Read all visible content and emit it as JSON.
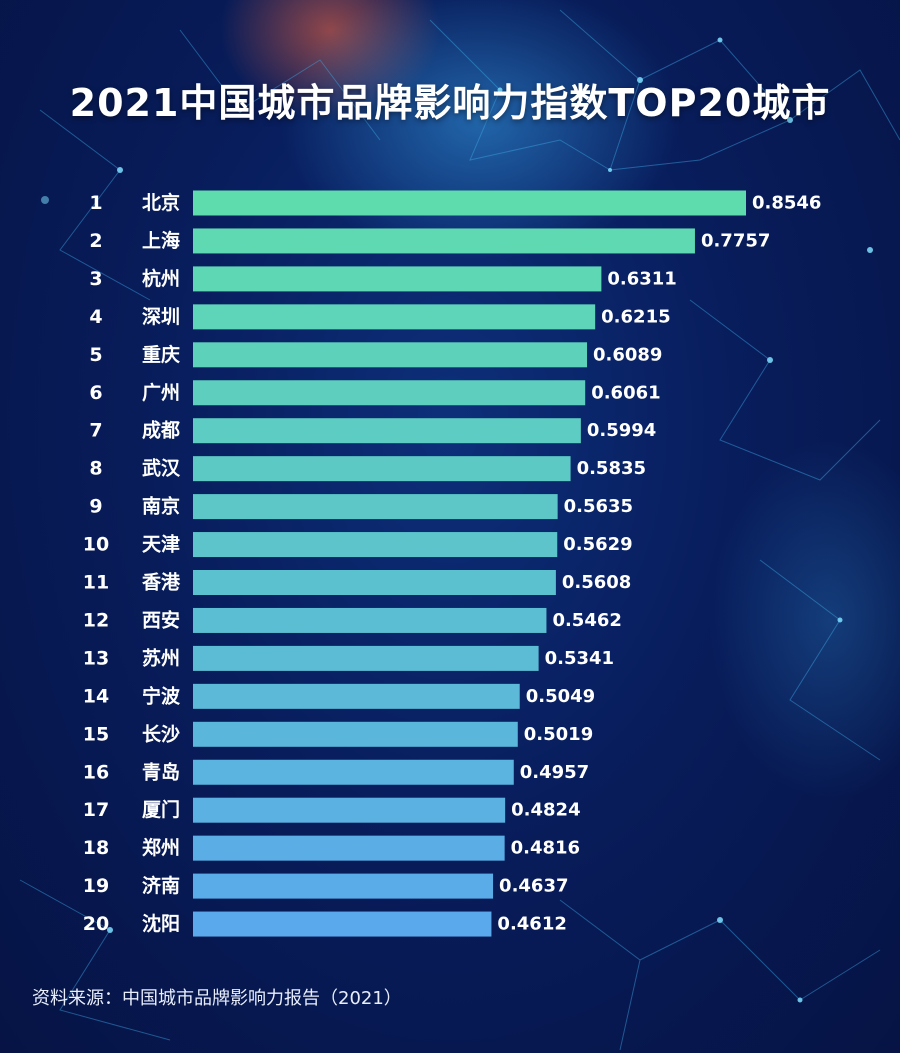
{
  "title": "2021中国城市品牌影响力指数TOP20城市",
  "source": "资料来源：中国城市品牌影响力报告（2021）",
  "colors": {
    "bar_top": "#5fdcae",
    "bar_bottom": "#5aa9ec",
    "text": "#ffffff"
  },
  "chart_data": {
    "type": "bar",
    "orientation": "horizontal",
    "title": "2021中国城市品牌影响力指数TOP20城市",
    "xlim": [
      0,
      0.8546
    ],
    "grid": false,
    "legend": "none",
    "ranks": [
      "1",
      "2",
      "3",
      "4",
      "5",
      "6",
      "7",
      "8",
      "9",
      "10",
      "11",
      "12",
      "13",
      "14",
      "15",
      "16",
      "17",
      "18",
      "19",
      "20"
    ],
    "categories": [
      "北京",
      "上海",
      "杭州",
      "深圳",
      "重庆",
      "广州",
      "成都",
      "武汉",
      "南京",
      "天津",
      "香港",
      "西安",
      "苏州",
      "宁波",
      "长沙",
      "青岛",
      "厦门",
      "郑州",
      "济南",
      "沈阳"
    ],
    "values": [
      0.8546,
      0.7757,
      0.6311,
      0.6215,
      0.6089,
      0.6061,
      0.5994,
      0.5835,
      0.5635,
      0.5629,
      0.5608,
      0.5462,
      0.5341,
      0.5049,
      0.5019,
      0.4957,
      0.4824,
      0.4816,
      0.4637,
      0.4612
    ],
    "value_labels": [
      "0.8546",
      "0.7757",
      "0.6311",
      "0.6215",
      "0.6089",
      "0.6061",
      "0.5994",
      "0.5835",
      "0.5635",
      "0.5629",
      "0.5608",
      "0.5462",
      "0.5341",
      "0.5049",
      "0.5019",
      "0.4957",
      "0.4824",
      "0.4816",
      "0.4637",
      "0.4612"
    ]
  }
}
